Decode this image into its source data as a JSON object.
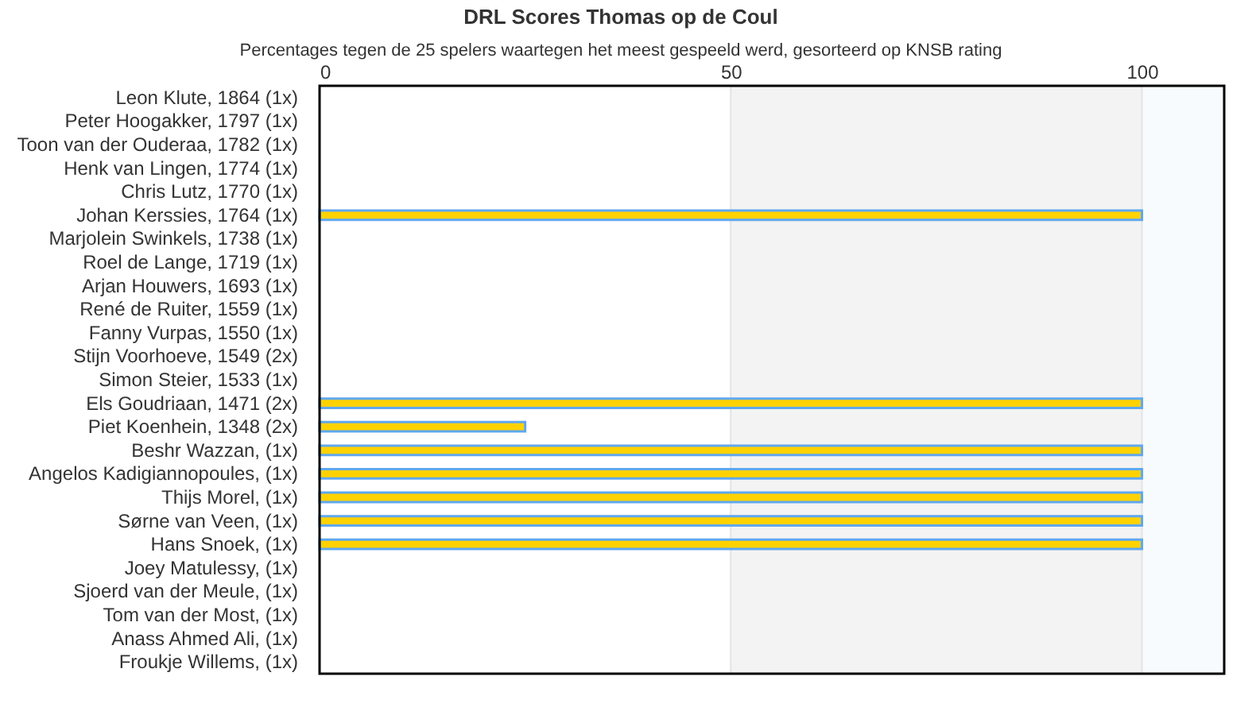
{
  "chart_data": {
    "type": "bar",
    "orientation": "horizontal",
    "title": "DRL Scores Thomas op de Coul",
    "subtitle": "Percentages tegen de 25 spelers waartegen het meest gespeeld werd, gesorteerd op KNSB rating",
    "categories": [
      "Leon Klute, 1864 (1x)",
      "Peter Hoogakker, 1797 (1x)",
      "Toon van der Ouderaa, 1782 (1x)",
      "Henk van Lingen, 1774 (1x)",
      "Chris Lutz, 1770 (1x)",
      "Johan Kerssies, 1764 (1x)",
      "Marjolein Swinkels, 1738 (1x)",
      "Roel de Lange, 1719 (1x)",
      "Arjan Houwers, 1693 (1x)",
      "René de Ruiter, 1559 (1x)",
      "Fanny Vurpas, 1550 (1x)",
      "Stijn Voorhoeve, 1549 (2x)",
      "Simon Steier, 1533 (1x)",
      "Els Goudriaan, 1471 (2x)",
      "Piet Koenhein, 1348 (2x)",
      "Beshr Wazzan,  (1x)",
      "Angelos Kadigiannopoules,  (1x)",
      "Thijs Morel,  (1x)",
      "Sørne van Veen,  (1x)",
      "Hans Snoek,  (1x)",
      "Joey Matulessy,  (1x)",
      "Sjoerd van der Meule,  (1x)",
      "Tom van der Most,  (1x)",
      "Anass Ahmed Ali,  (1x)",
      "Froukje Willems,  (1x)"
    ],
    "series": [
      {
        "color": "#ffd200",
        "values": [
          0,
          0,
          0,
          0,
          0,
          100,
          0,
          0,
          0,
          0,
          0,
          0,
          0,
          100,
          25,
          100,
          100,
          100,
          100,
          100,
          0,
          0,
          0,
          0,
          0
        ]
      }
    ],
    "xlim": [
      0,
      110
    ],
    "xticks": [
      0,
      50,
      100
    ],
    "grid": "x",
    "bands": [
      {
        "axis": "x",
        "from": 50,
        "to": 100,
        "color": "#f3f3f3"
      },
      {
        "axis": "x",
        "from": 100,
        "to": 110,
        "color": "#f7fbfe"
      }
    ]
  }
}
